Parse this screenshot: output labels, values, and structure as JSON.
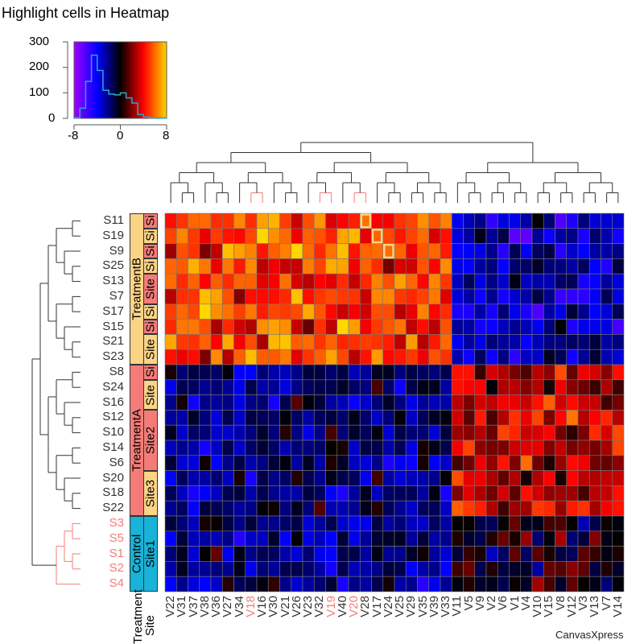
{
  "title": "Highlight cells in Heatmap",
  "brand": "CanvasXpress",
  "colors": {
    "treatmentB": "#fbd486",
    "treatmentA": "#f47c78",
    "control": "#19b2d8",
    "highlight": "#fbd486",
    "red_label": "#f47c78"
  },
  "legend": {
    "y_ticks": [
      "300",
      "200",
      "100",
      "0"
    ],
    "x_ticks": [
      "-8",
      "0",
      "8"
    ],
    "hist_bins": [
      -8,
      -7,
      -6,
      -5,
      -4,
      -3,
      -2,
      -1,
      0,
      1,
      2,
      3,
      4,
      5,
      6,
      7,
      8
    ],
    "hist_counts": [
      2,
      40,
      145,
      248,
      188,
      110,
      95,
      92,
      100,
      80,
      60,
      15,
      5,
      2,
      2,
      1
    ]
  },
  "annotation_headers": [
    "Treatment",
    "Site"
  ],
  "rows": [
    "S11",
    "S19",
    "S9",
    "S25",
    "S13",
    "S7",
    "S17",
    "S15",
    "S21",
    "S23",
    "S8",
    "S24",
    "S16",
    "S12",
    "S10",
    "S14",
    "S6",
    "S20",
    "S18",
    "S22",
    "S3",
    "S5",
    "S1",
    "S2",
    "S4"
  ],
  "red_rows": [
    "S3",
    "S5",
    "S1",
    "S2",
    "S4"
  ],
  "columns": [
    "V22",
    "V31",
    "V37",
    "V38",
    "V36",
    "V27",
    "V34",
    "V18",
    "V16",
    "V30",
    "V21",
    "V26",
    "V23",
    "V32",
    "V19",
    "V40",
    "V20",
    "V28",
    "V17",
    "V24",
    "V25",
    "V29",
    "V35",
    "V39",
    "V33",
    "V11",
    "V5",
    "V9",
    "V2",
    "V6",
    "V1",
    "V4",
    "V10",
    "V15",
    "V8",
    "V12",
    "V3",
    "V13",
    "V7",
    "V14"
  ],
  "red_columns": [
    "V18",
    "V19",
    "V20"
  ],
  "treatment_segments": [
    {
      "label": "TreatmentB",
      "start": 0,
      "span": 10,
      "color": "treatmentB"
    },
    {
      "label": "TreatmentA",
      "start": 10,
      "span": 10,
      "color": "treatmentA"
    },
    {
      "label": "Control",
      "start": 20,
      "span": 5,
      "color": "control"
    }
  ],
  "site_segments": [
    {
      "label": "Si",
      "start": 0,
      "span": 1,
      "color": "treatmentA"
    },
    {
      "label": "Si",
      "start": 1,
      "span": 1,
      "color": "treatmentB"
    },
    {
      "label": "Si",
      "start": 2,
      "span": 1,
      "color": "treatmentA"
    },
    {
      "label": "Si",
      "start": 3,
      "span": 1,
      "color": "treatmentB"
    },
    {
      "label": "Site",
      "start": 4,
      "span": 2,
      "color": "treatmentA"
    },
    {
      "label": "Si",
      "start": 6,
      "span": 1,
      "color": "treatmentB"
    },
    {
      "label": "Si",
      "start": 7,
      "span": 1,
      "color": "treatmentA"
    },
    {
      "label": "Site",
      "start": 8,
      "span": 2,
      "color": "treatmentB"
    },
    {
      "label": "Si",
      "start": 10,
      "span": 1,
      "color": "treatmentA"
    },
    {
      "label": "Site",
      "start": 11,
      "span": 2,
      "color": "treatmentB"
    },
    {
      "label": "Site2",
      "start": 13,
      "span": 4,
      "color": "treatmentA"
    },
    {
      "label": "Site3",
      "start": 17,
      "span": 3,
      "color": "treatmentB"
    },
    {
      "label": "Site1",
      "start": 20,
      "span": 5,
      "color": "control"
    }
  ],
  "highlighted_cells": [
    {
      "row": "S11",
      "col": "V28"
    },
    {
      "row": "S19",
      "col": "V17"
    },
    {
      "row": "S9",
      "col": "V24"
    }
  ],
  "chart_data": {
    "type": "heatmap",
    "title": "Highlight cells in Heatmap",
    "color_range": [
      -8,
      8
    ],
    "color_stops": [
      "#a000ff",
      "#0000ff",
      "#000000",
      "#ff0000",
      "#ffd700"
    ],
    "block_means": [
      {
        "rows": "S11-S23",
        "cols": "V22-V33",
        "mean": 5
      },
      {
        "rows": "S11-S23",
        "cols": "V11-V14",
        "mean": -3
      },
      {
        "rows": "S8-S4",
        "cols": "V22-V33",
        "mean": -2
      },
      {
        "rows": "S8-S22",
        "cols": "V11-V14",
        "mean": 3
      },
      {
        "rows": "S3-S4",
        "cols": "V11-V14",
        "mean": 0
      }
    ]
  }
}
